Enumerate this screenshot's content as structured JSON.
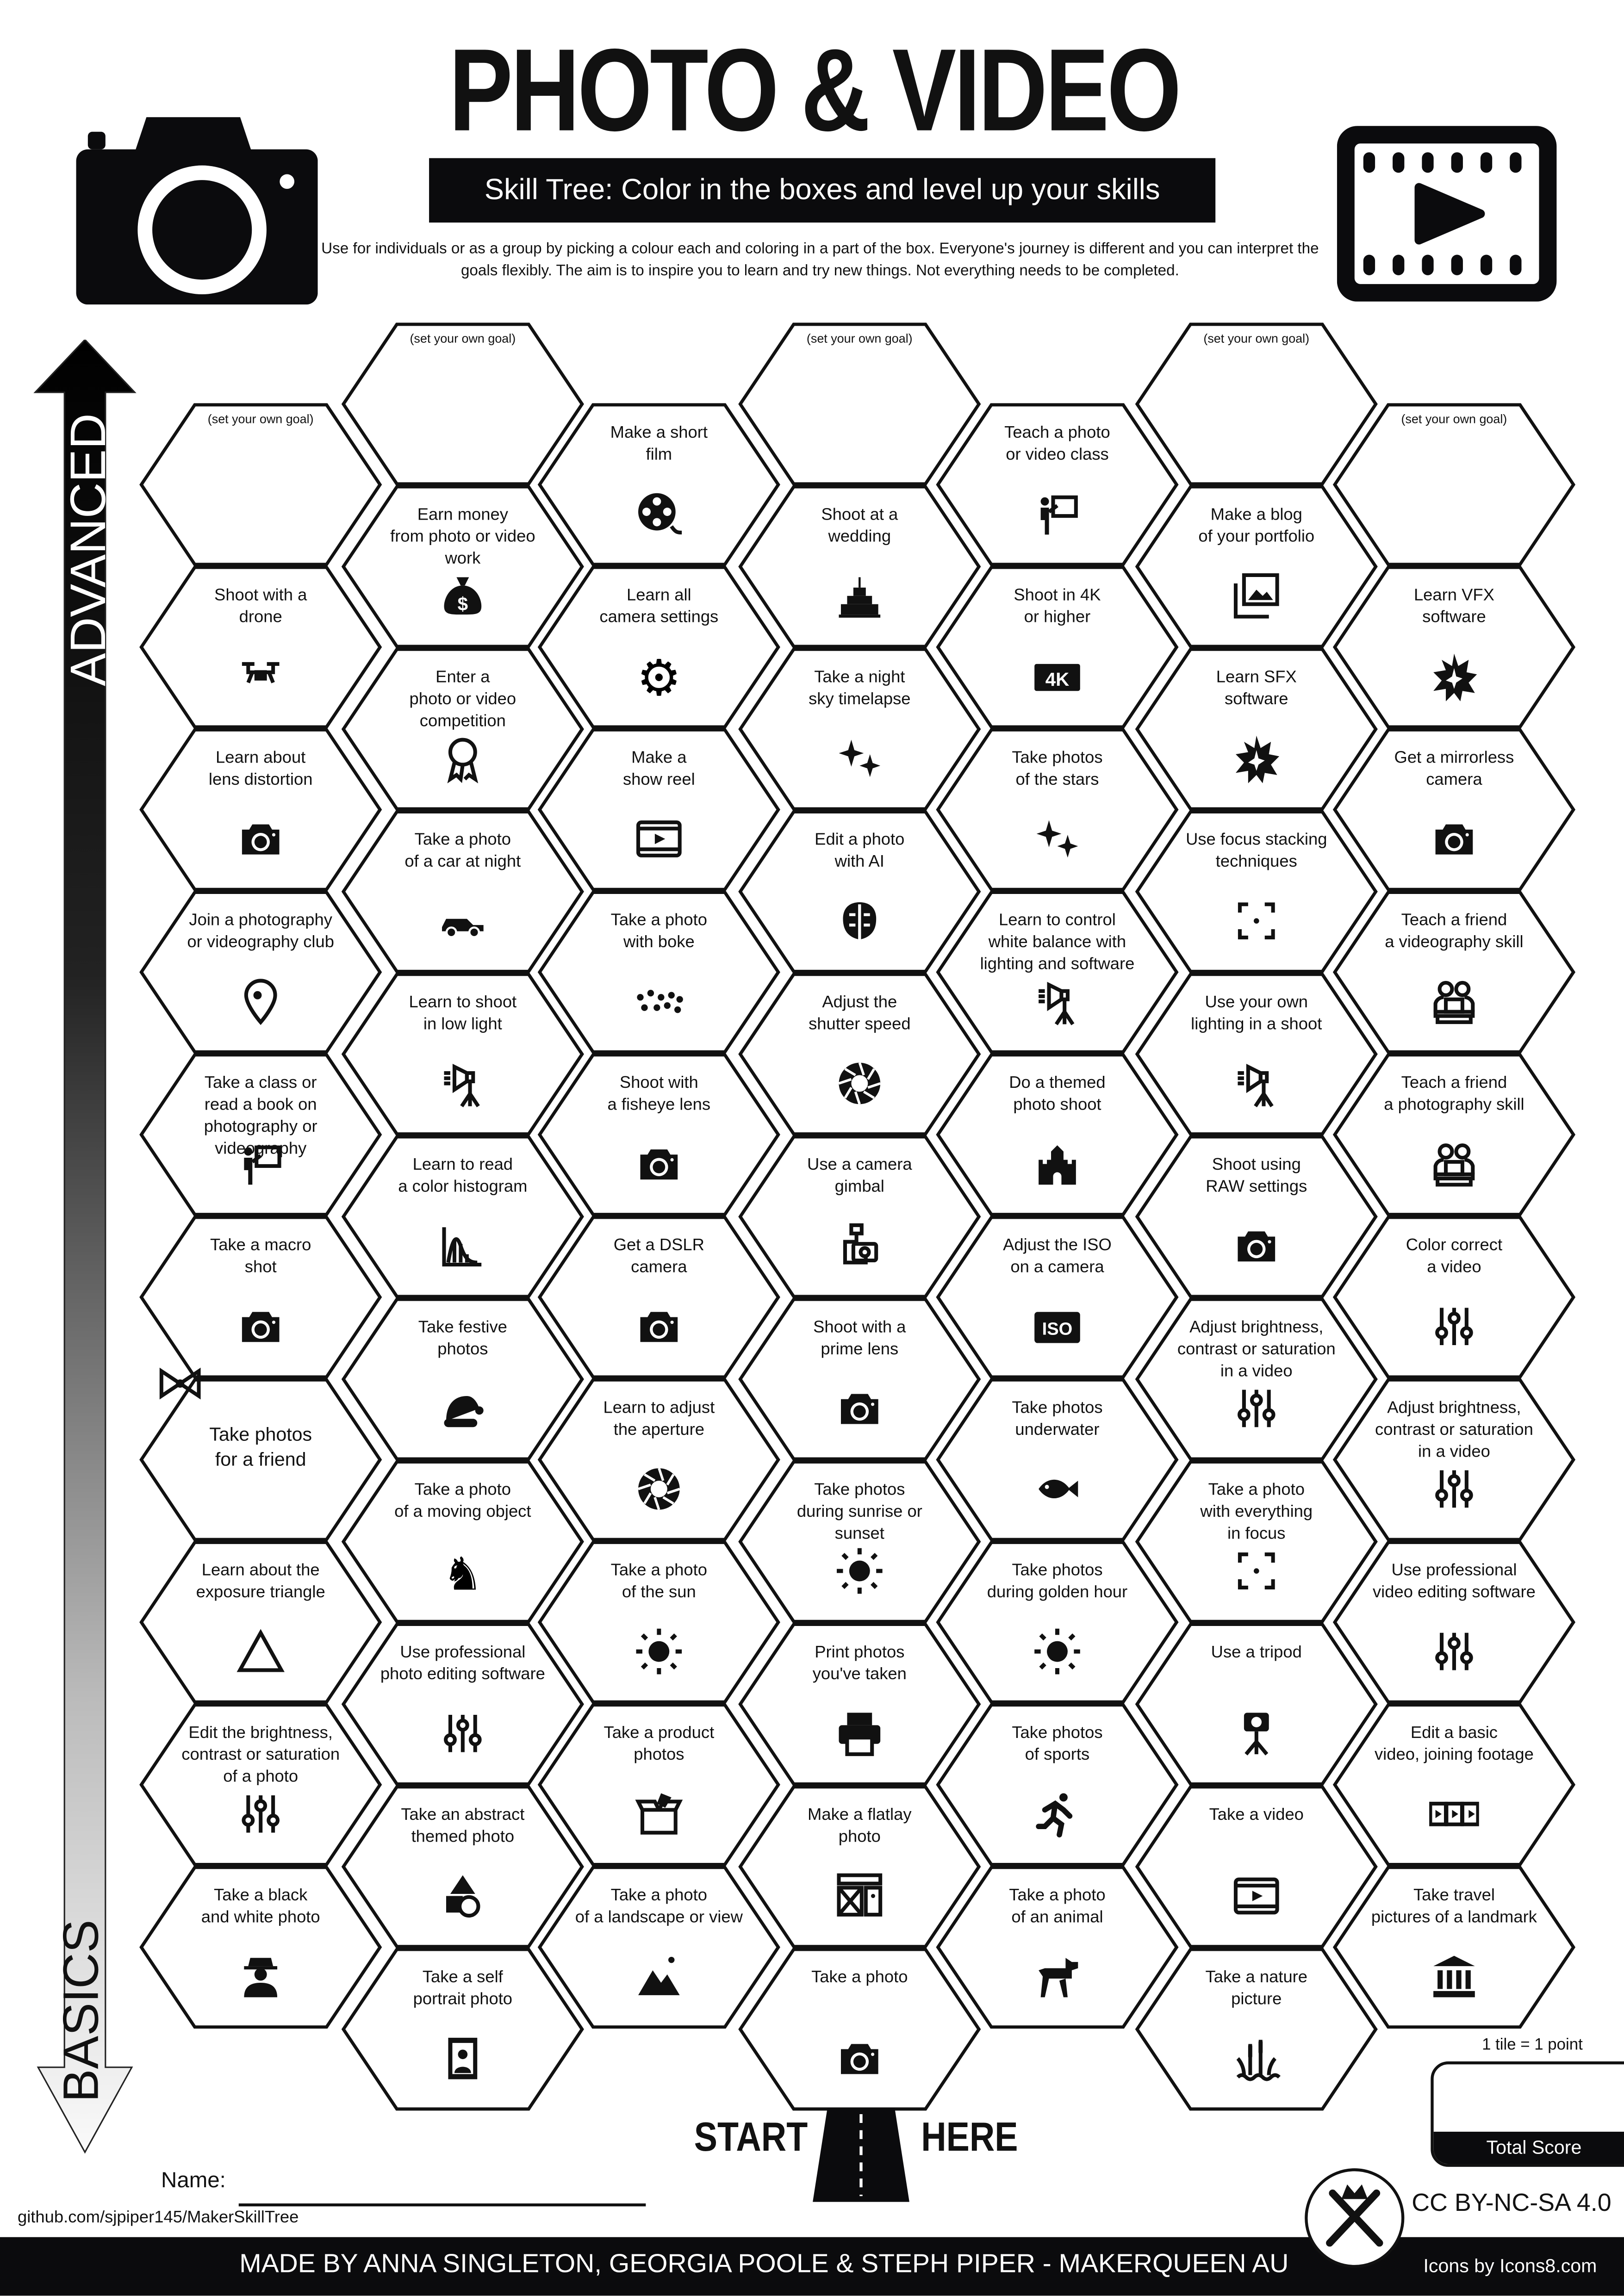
{
  "header": {
    "title": "PHOTO & VIDEO",
    "subtitle": "Skill Tree:  Color in the boxes and level up your skills",
    "description": "Use for individuals or as a group by picking a colour each and coloring in a part of the box.  Everyone's journey is different and you can interpret the goals flexibly.  The aim is to inspire you to learn and try new things. Not everything needs to be completed."
  },
  "progress_axis": {
    "top_label": "ADVANCED",
    "bottom_label": "BASICS"
  },
  "columns": [
    {
      "tiles": [
        {
          "label": "(set your own goal)",
          "goal": true
        },
        {
          "label": "Shoot with a\ndrone",
          "icon": "drone"
        },
        {
          "label": "Learn about\nlens distortion",
          "icon": "camera"
        },
        {
          "label": "Join a photography\nor videography club",
          "icon": "location-pin"
        },
        {
          "label": "Take a class or\nread a book on\nphotography or videography",
          "icon": "teacher-board"
        },
        {
          "label": "Take a macro\nshot",
          "icon": "camera"
        },
        {
          "label": "Take photos\nfor a friend",
          "icon": "gift-bow",
          "big": true
        },
        {
          "label": "Learn about the\nexposure triangle",
          "icon": "triangle"
        },
        {
          "label": "Edit the brightness,\ncontrast or saturation\nof a photo",
          "icon": "sliders"
        },
        {
          "label": "Take a black\nand white photo",
          "icon": "man-with-hat"
        }
      ]
    },
    {
      "tiles": [
        {
          "label": "(set your own goal)",
          "goal": true
        },
        {
          "label": "Earn money\nfrom photo or video work",
          "icon": "money-bag"
        },
        {
          "label": "Enter a\nphoto or video\ncompetition",
          "icon": "award-ribbon"
        },
        {
          "label": "Take a photo\nof a car at night",
          "icon": "car"
        },
        {
          "label": "Learn to shoot\nin low light",
          "icon": "studio-light"
        },
        {
          "label": "Learn to read\na color histogram",
          "icon": "histogram"
        },
        {
          "label": "Take festive\nphotos",
          "icon": "santa-hat"
        },
        {
          "label": "Take a photo\nof a moving object",
          "icon": "horse"
        },
        {
          "label": "Use professional\nphoto editing software",
          "icon": "sliders"
        },
        {
          "label": "Take an abstract\nthemed photo",
          "icon": "shapes"
        },
        {
          "label": "Take a self\nportrait photo",
          "icon": "portrait-frame"
        }
      ]
    },
    {
      "tiles": [
        {
          "label": "Make a short\nfilm",
          "icon": "film-reel"
        },
        {
          "label": "Learn all\ncamera settings",
          "icon": "gear"
        },
        {
          "label": "Make a\nshow reel",
          "icon": "video-frame"
        },
        {
          "label": "Take a photo\nwith boke",
          "icon": "bokeh-dots"
        },
        {
          "label": "Shoot with\na fisheye lens",
          "icon": "camera"
        },
        {
          "label": "Get a DSLR\ncamera",
          "icon": "camera"
        },
        {
          "label": "Learn to adjust\nthe aperture",
          "icon": "aperture"
        },
        {
          "label": "Take a photo\nof the sun",
          "icon": "sun"
        },
        {
          "label": "Take a product\nphotos",
          "icon": "box"
        },
        {
          "label": "Take a photo\nof a landscape or view",
          "icon": "mountain"
        }
      ]
    },
    {
      "tiles": [
        {
          "label": "(set your own goal)",
          "goal": true
        },
        {
          "label": "Shoot at a\nwedding",
          "icon": "wedding-cake"
        },
        {
          "label": "Take a night\nsky timelapse",
          "icon": "sparkles"
        },
        {
          "label": "Edit a photo\nwith AI",
          "icon": "brain"
        },
        {
          "label": "Adjust the\nshutter speed",
          "icon": "aperture"
        },
        {
          "label": "Use a camera\ngimbal",
          "icon": "gimbal"
        },
        {
          "label": "Shoot with a\nprime lens",
          "icon": "camera"
        },
        {
          "label": "Take photos\nduring sunrise or\nsunset",
          "icon": "sun"
        },
        {
          "label": "Print photos\nyou've taken",
          "icon": "printer"
        },
        {
          "label": "Make a flatlay\nphoto",
          "icon": "flatlay"
        },
        {
          "label": "Take a photo",
          "icon": "camera"
        }
      ]
    },
    {
      "tiles": [
        {
          "label": "Teach a photo\nor video class",
          "icon": "teacher-board"
        },
        {
          "label": "Shoot in 4K\nor higher",
          "icon": "4k-badge"
        },
        {
          "label": "Take photos\nof the stars",
          "icon": "sparkles"
        },
        {
          "label": "Learn to control\nwhite balance with\nlighting and software",
          "icon": "studio-light"
        },
        {
          "label": "Do a themed\nphoto shoot",
          "icon": "castle"
        },
        {
          "label": "Adjust the ISO\non a camera",
          "icon": "iso-badge"
        },
        {
          "label": "Take photos\nunderwater",
          "icon": "fish"
        },
        {
          "label": "Take photos\nduring golden hour",
          "icon": "sun"
        },
        {
          "label": "Take photos\nof sports",
          "icon": "runner"
        },
        {
          "label": "Take a photo\nof an animal",
          "icon": "dog"
        }
      ]
    },
    {
      "tiles": [
        {
          "label": "(set your own goal)",
          "goal": true
        },
        {
          "label": "Make a blog\nof your portfolio",
          "icon": "photo-gallery"
        },
        {
          "label": "Learn SFX\nsoftware",
          "icon": "explosion"
        },
        {
          "label": "Use focus stacking\ntechniques",
          "icon": "focus-frame"
        },
        {
          "label": "Use your own\nlighting in a shoot",
          "icon": "studio-light"
        },
        {
          "label": "Shoot using\nRAW settings",
          "icon": "camera"
        },
        {
          "label": "Adjust brightness,\ncontrast or saturation\nin a video",
          "icon": "sliders"
        },
        {
          "label": "Take a photo\nwith everything\nin focus",
          "icon": "focus-frame"
        },
        {
          "label": "Use a tripod",
          "icon": "tripod-camera"
        },
        {
          "label": "Take a video",
          "icon": "video-frame"
        },
        {
          "label": "Take a nature\npicture",
          "icon": "reeds"
        }
      ]
    },
    {
      "tiles": [
        {
          "label": "(set your own goal)",
          "goal": true
        },
        {
          "label": "Learn VFX\nsoftware",
          "icon": "explosion"
        },
        {
          "label": "Get a mirrorless\ncamera",
          "icon": "camera"
        },
        {
          "label": "Teach a friend\na videography skill",
          "icon": "people-laptop"
        },
        {
          "label": "Teach a friend\na photography skill",
          "icon": "people-laptop"
        },
        {
          "label": "Color correct\na video",
          "icon": "sliders"
        },
        {
          "label": "Adjust brightness,\ncontrast or saturation\nin a video",
          "icon": "sliders"
        },
        {
          "label": "Use professional\nvideo editing software",
          "icon": "sliders"
        },
        {
          "label": "Edit a basic\nvideo, joining footage",
          "icon": "film-strip"
        },
        {
          "label": "Take travel\npictures of a landmark",
          "icon": "museum"
        }
      ]
    }
  ],
  "start": {
    "left": "START",
    "right": "HERE"
  },
  "score": {
    "rule": "1 tile = 1 point",
    "label": "Total Score"
  },
  "name_label": "Name:",
  "github": "github.com/sjpiper145/MakerSkillTree",
  "license": "CC BY-NC-SA 4.0",
  "credits": "MADE BY ANNA SINGLETON, GEORGIA  POOLE & STEPH PIPER  -  MAKERQUEEN AU",
  "icons_credit": "Icons by Icons8.com",
  "colors": {
    "ink": "#0b0b0d",
    "paper": "#ffffff"
  }
}
